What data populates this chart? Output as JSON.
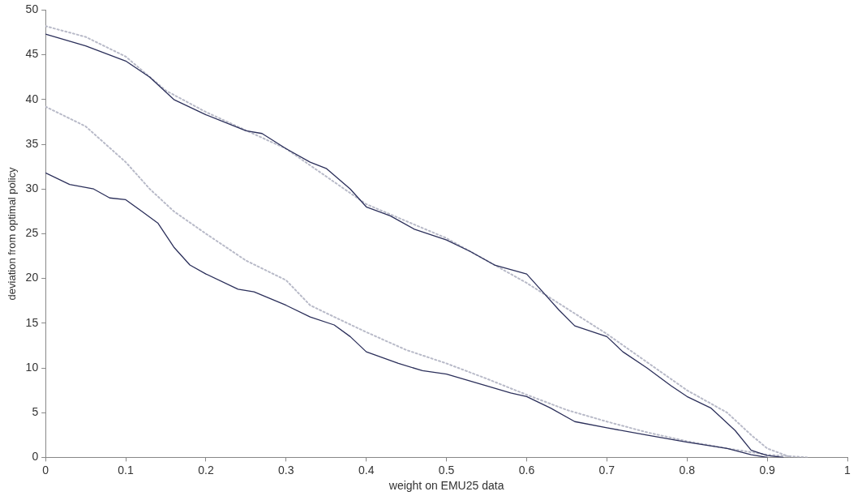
{
  "chart_data": {
    "type": "line",
    "xlabel": "weight on EMU25 data",
    "ylabel": "deviation from optimal policy",
    "xlim": [
      0,
      1
    ],
    "xticks": [
      0,
      0.1,
      0.2,
      0.3,
      0.4,
      0.5,
      0.6,
      0.7,
      0.8,
      0.9,
      1
    ],
    "ylim": [
      0,
      50
    ],
    "yticks": [
      0,
      5,
      10,
      15,
      20,
      25,
      30,
      35,
      40,
      45,
      50
    ],
    "grid": false,
    "legend": false,
    "marker": "none",
    "series": [
      {
        "color": "#2b2f5a",
        "line_style": "solid",
        "x": [
          0,
          0.05,
          0.1,
          0.13,
          0.16,
          0.2,
          0.25,
          0.27,
          0.3,
          0.33,
          0.35,
          0.38,
          0.4,
          0.43,
          0.46,
          0.5,
          0.53,
          0.56,
          0.6,
          0.62,
          0.64,
          0.66,
          0.7,
          0.72,
          0.75,
          0.78,
          0.8,
          0.83,
          0.86,
          0.88,
          0.9,
          0.92
        ],
        "values": [
          47.3,
          46,
          44.3,
          42.5,
          40,
          38.3,
          36.5,
          36.2,
          34.5,
          33,
          32.3,
          30,
          28,
          27,
          25.5,
          24.3,
          23,
          21.5,
          20.5,
          18.5,
          16.5,
          14.7,
          13.5,
          11.8,
          10,
          8,
          6.8,
          5.5,
          3,
          0.8,
          0.2,
          0
        ]
      },
      {
        "color": "#b8bac8",
        "line_style": "dotted",
        "x": [
          0,
          0.05,
          0.1,
          0.15,
          0.2,
          0.3,
          0.4,
          0.5,
          0.6,
          0.7,
          0.8,
          0.85,
          0.88,
          0.9,
          0.93
        ],
        "values": [
          48.2,
          47,
          44.8,
          41,
          38.6,
          34.5,
          28.3,
          24.5,
          19.5,
          13.8,
          7.5,
          5,
          2.5,
          1,
          0
        ]
      },
      {
        "color": "#2b2f5a",
        "line_style": "solid",
        "x": [
          0,
          0.03,
          0.06,
          0.08,
          0.1,
          0.12,
          0.14,
          0.16,
          0.18,
          0.2,
          0.24,
          0.26,
          0.3,
          0.33,
          0.36,
          0.38,
          0.4,
          0.44,
          0.47,
          0.5,
          0.55,
          0.58,
          0.6,
          0.63,
          0.66,
          0.7,
          0.75,
          0.8,
          0.85,
          0.88,
          0.9
        ],
        "values": [
          31.8,
          30.5,
          30,
          29,
          28.8,
          27.5,
          26.2,
          23.5,
          21.5,
          20.5,
          18.8,
          18.5,
          17,
          15.7,
          14.8,
          13.5,
          11.8,
          10.5,
          9.7,
          9.3,
          8,
          7.2,
          6.8,
          5.5,
          4,
          3.3,
          2.5,
          1.7,
          1,
          0.3,
          0
        ]
      },
      {
        "color": "#b8bac8",
        "line_style": "dotted",
        "x": [
          0,
          0.05,
          0.1,
          0.13,
          0.16,
          0.2,
          0.25,
          0.3,
          0.33,
          0.36,
          0.4,
          0.45,
          0.5,
          0.55,
          0.6,
          0.65,
          0.7,
          0.75,
          0.8,
          0.85,
          0.9,
          0.95
        ],
        "values": [
          39.2,
          37,
          33,
          30,
          27.5,
          25,
          22,
          19.8,
          17,
          15.7,
          14,
          12,
          10.5,
          8.8,
          7,
          5.3,
          4,
          2.8,
          1.8,
          1,
          0.3,
          0
        ]
      }
    ]
  }
}
